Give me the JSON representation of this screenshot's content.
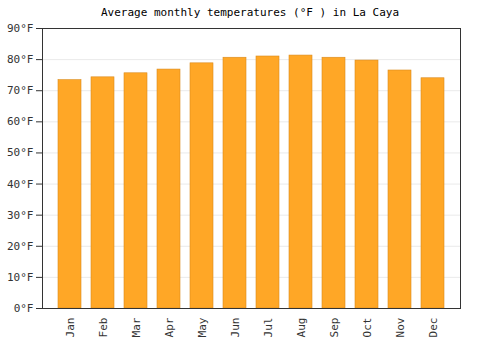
{
  "chart_data": {
    "type": "bar",
    "title": "Average monthly temperatures (°F ) in La Caya",
    "categories": [
      "Jan",
      "Feb",
      "Mar",
      "Apr",
      "May",
      "Jun",
      "Jul",
      "Aug",
      "Sep",
      "Oct",
      "Nov",
      "Dec"
    ],
    "values": [
      73.4,
      74.3,
      75.6,
      76.8,
      78.8,
      80.6,
      81.0,
      81.3,
      80.6,
      79.7,
      76.5,
      74.0
    ],
    "color": "#ffa726",
    "ylim": [
      0,
      90
    ],
    "yticks": [
      {
        "value": 0,
        "label": "0°F"
      },
      {
        "value": 10,
        "label": "10°F"
      },
      {
        "value": 20,
        "label": "20°F"
      },
      {
        "value": 30,
        "label": "30°F"
      },
      {
        "value": 40,
        "label": "40°F"
      },
      {
        "value": 50,
        "label": "50°F"
      },
      {
        "value": 60,
        "label": "60°F"
      },
      {
        "value": 70,
        "label": "70°F"
      },
      {
        "value": 80,
        "label": "80°F"
      },
      {
        "value": 90,
        "label": "90°F"
      }
    ],
    "grid": true
  }
}
